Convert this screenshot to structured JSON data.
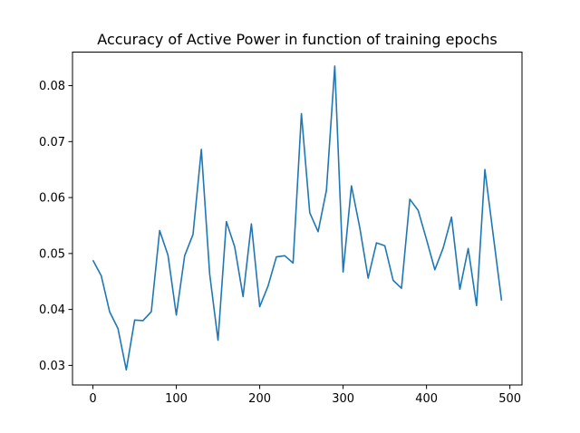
{
  "chart_data": {
    "type": "line",
    "title": "Accuracy of Active Power in function of training epochs",
    "xlabel": "",
    "ylabel": "",
    "xlim": [
      -24.5,
      514.5
    ],
    "ylim": [
      0.0265,
      0.086
    ],
    "xticks": [
      0,
      100,
      200,
      300,
      400,
      500
    ],
    "yticks": [
      0.03,
      0.04,
      0.05,
      0.06,
      0.07,
      0.08
    ],
    "xtick_labels": [
      "0",
      "100",
      "200",
      "300",
      "400",
      "500"
    ],
    "ytick_labels": [
      "0.03",
      "0.04",
      "0.05",
      "0.06",
      "0.07",
      "0.08"
    ],
    "grid": false,
    "series": [
      {
        "color": "#1f77b4",
        "x": [
          0,
          10,
          20,
          30,
          40,
          50,
          60,
          70,
          80,
          90,
          100,
          110,
          120,
          130,
          140,
          150,
          160,
          170,
          180,
          190,
          200,
          210,
          220,
          230,
          240,
          250,
          260,
          270,
          280,
          290,
          300,
          310,
          320,
          330,
          340,
          350,
          360,
          370,
          380,
          390,
          400,
          410,
          420,
          430,
          440,
          450,
          460,
          470,
          480,
          490
        ],
        "values": [
          0.0488,
          0.046,
          0.0396,
          0.0366,
          0.0292,
          0.0381,
          0.038,
          0.0396,
          0.0541,
          0.0497,
          0.039,
          0.0496,
          0.0534,
          0.0686,
          0.0463,
          0.0345,
          0.0557,
          0.0512,
          0.0423,
          0.0553,
          0.0405,
          0.0442,
          0.0494,
          0.0496,
          0.0483,
          0.075,
          0.0573,
          0.0539,
          0.0613,
          0.0835,
          0.0467,
          0.0621,
          0.0546,
          0.0456,
          0.0519,
          0.0514,
          0.0452,
          0.0438,
          0.0597,
          0.0577,
          0.0525,
          0.0471,
          0.051,
          0.0565,
          0.0436,
          0.0509,
          0.0407,
          0.065,
          0.0533,
          0.0416
        ]
      }
    ]
  }
}
